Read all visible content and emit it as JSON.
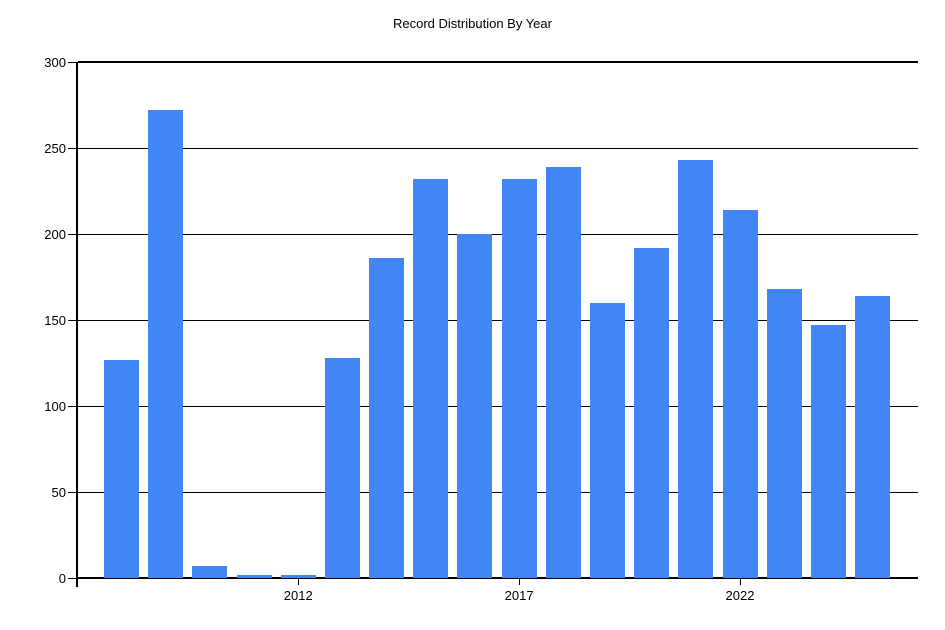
{
  "chart_data": {
    "type": "bar",
    "title": "Record Distribution By Year",
    "categories": [
      "2008",
      "2009",
      "2010",
      "2011",
      "2012",
      "2013",
      "2014",
      "2015",
      "2016",
      "2017",
      "2018",
      "2019",
      "2020",
      "2021",
      "2022",
      "2023",
      "2024",
      "2025"
    ],
    "values": [
      127,
      272,
      7,
      2,
      2,
      128,
      186,
      232,
      200,
      232,
      239,
      160,
      192,
      243,
      214,
      168,
      147,
      164
    ],
    "xlabel": "",
    "ylabel": "",
    "ylim": [
      0,
      300
    ],
    "y_ticks": [
      0,
      50,
      100,
      150,
      200,
      250,
      300
    ],
    "y_tick_labels": [
      "0",
      "50",
      "100",
      "150",
      "200",
      "250",
      "300"
    ],
    "x_ticks": [
      {
        "year": "2012",
        "label": "2012"
      },
      {
        "year": "2017",
        "label": "2017"
      },
      {
        "year": "2022",
        "label": "2022"
      }
    ],
    "grid": "horizontal",
    "legend_position": "none",
    "colors": {
      "bar": "#4285F4",
      "axis": "#000000",
      "gridline": "#000000",
      "text": "#000000",
      "background": "#FFFFFF"
    }
  }
}
